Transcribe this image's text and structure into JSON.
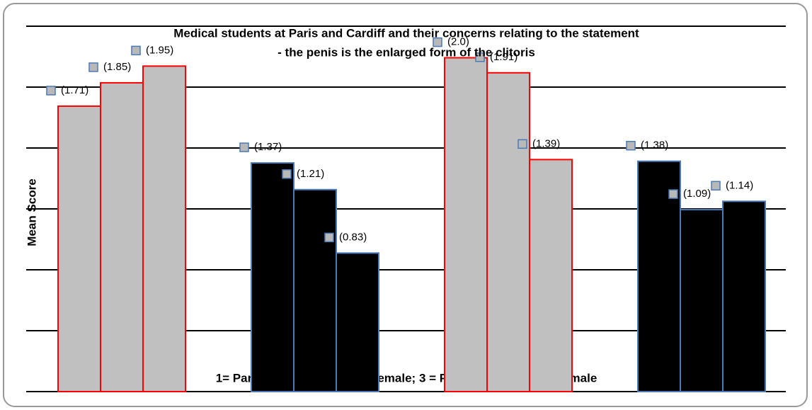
{
  "chart_data": {
    "type": "bar",
    "title": "Medical students at Paris and Cardiff and their concerns relating to the statement",
    "subtitle": "- the penis is the enlarged form of the clitoris",
    "y_label": "Mean Score",
    "x_label": "1= Paris female; 2 = Cardiff female; 3 = Paris male; 4 = Cardiff male",
    "values": [
      1.71,
      1.85,
      1.95,
      1.37,
      1.21,
      0.83,
      2.0,
      1.91,
      1.39,
      1.38,
      1.09,
      1.14
    ],
    "value_labels": [
      "(1.71)",
      "(1.85)",
      "(1.95)",
      "(1.37)",
      "(1.21)",
      "(0.83)",
      "(2.0)",
      "(1.91)",
      "(1.39)",
      "(1.38)",
      "(1.09)",
      "(1.14)"
    ],
    "colors": [
      "#c0c0c0",
      "#c0c0c0",
      "#c0c0c0",
      "#000000",
      "#000000",
      "#000000",
      "#c0c0c0",
      "#c0c0c0",
      "#c0c0c0",
      "#000000",
      "#000000",
      "#000000"
    ],
    "edge_colors": [
      "#ff0000",
      "#ff0000",
      "#ff0000",
      "#4a7ab8",
      "#4a7ab8",
      "#4a7ab8",
      "#ff0000",
      "#ff0000",
      "#ff0000",
      "#4a7ab8",
      "#4a7ab8",
      "#4a7ab8"
    ],
    "ylim": [
      0,
      2.1
    ]
  }
}
